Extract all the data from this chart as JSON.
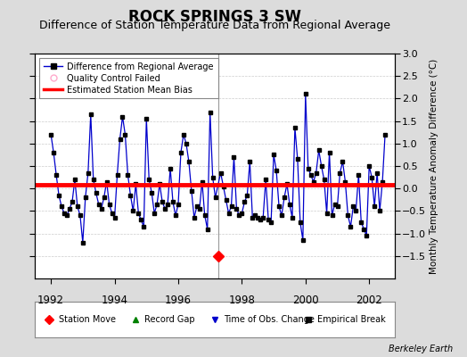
{
  "title": "ROCK SPRINGS 3 SW",
  "subtitle": "Difference of Station Temperature Data from Regional Average",
  "ylabel": "Monthly Temperature Anomaly Difference (°C)",
  "ylim": [
    -2,
    3
  ],
  "yticks_right": [
    -1.5,
    -1,
    -0.5,
    0,
    0.5,
    1,
    1.5,
    2,
    2.5,
    3
  ],
  "xlim": [
    1991.5,
    2002.8
  ],
  "xticks": [
    1992,
    1994,
    1996,
    1998,
    2000,
    2002
  ],
  "bias_value": 0.08,
  "station_move_x": 1997.25,
  "station_move_y": -1.5,
  "vertical_line_x": 1997.25,
  "background_color": "#dcdcdc",
  "plot_bg_color": "#ffffff",
  "line_color": "#0000cc",
  "bias_color": "#ff0000",
  "marker_color": "#000000",
  "title_fontsize": 12,
  "subtitle_fontsize": 9,
  "data_x": [
    1992.0,
    1992.083,
    1992.167,
    1992.25,
    1992.333,
    1992.417,
    1992.5,
    1992.583,
    1992.667,
    1992.75,
    1992.833,
    1992.917,
    1993.0,
    1993.083,
    1993.167,
    1993.25,
    1993.333,
    1993.417,
    1993.5,
    1993.583,
    1993.667,
    1993.75,
    1993.833,
    1993.917,
    1994.0,
    1994.083,
    1994.167,
    1994.25,
    1994.333,
    1994.417,
    1994.5,
    1994.583,
    1994.667,
    1994.75,
    1994.833,
    1994.917,
    1995.0,
    1995.083,
    1995.167,
    1995.25,
    1995.333,
    1995.417,
    1995.5,
    1995.583,
    1995.667,
    1995.75,
    1995.833,
    1995.917,
    1996.0,
    1996.083,
    1996.167,
    1996.25,
    1996.333,
    1996.417,
    1996.5,
    1996.583,
    1996.667,
    1996.75,
    1996.833,
    1996.917,
    1997.0,
    1997.083,
    1997.167,
    1997.333,
    1997.417,
    1997.5,
    1997.583,
    1997.667,
    1997.75,
    1997.833,
    1997.917,
    1998.0,
    1998.083,
    1998.167,
    1998.25,
    1998.333,
    1998.417,
    1998.5,
    1998.583,
    1998.667,
    1998.75,
    1998.833,
    1998.917,
    1999.0,
    1999.083,
    1999.167,
    1999.25,
    1999.333,
    1999.417,
    1999.5,
    1999.583,
    1999.667,
    1999.75,
    1999.833,
    1999.917,
    2000.0,
    2000.083,
    2000.167,
    2000.25,
    2000.333,
    2000.417,
    2000.5,
    2000.583,
    2000.667,
    2000.75,
    2000.833,
    2000.917,
    2001.0,
    2001.083,
    2001.167,
    2001.25,
    2001.333,
    2001.417,
    2001.5,
    2001.583,
    2001.667,
    2001.75,
    2001.833,
    2001.917,
    2002.0,
    2002.083,
    2002.167,
    2002.25,
    2002.333,
    2002.417,
    2002.5
  ],
  "data_y": [
    1.2,
    0.8,
    0.3,
    -0.15,
    -0.4,
    -0.55,
    -0.6,
    -0.45,
    -0.3,
    0.2,
    -0.4,
    -0.6,
    -1.2,
    -0.2,
    0.35,
    1.65,
    0.2,
    -0.1,
    -0.35,
    -0.45,
    -0.2,
    0.15,
    -0.35,
    -0.55,
    -0.65,
    0.3,
    1.1,
    1.6,
    1.2,
    0.3,
    -0.15,
    -0.5,
    0.1,
    -0.55,
    -0.7,
    -0.85,
    1.55,
    0.2,
    -0.1,
    -0.55,
    -0.35,
    0.1,
    -0.3,
    -0.45,
    -0.35,
    0.45,
    -0.3,
    -0.6,
    -0.35,
    0.8,
    1.2,
    1.0,
    0.6,
    -0.05,
    -0.65,
    -0.4,
    -0.45,
    0.15,
    -0.6,
    -0.9,
    1.7,
    0.25,
    -0.2,
    0.35,
    0.05,
    -0.25,
    -0.55,
    -0.4,
    0.7,
    -0.45,
    -0.6,
    -0.55,
    -0.3,
    -0.15,
    0.6,
    -0.65,
    -0.6,
    -0.65,
    -0.7,
    -0.65,
    0.2,
    -0.7,
    -0.75,
    0.75,
    0.4,
    -0.4,
    -0.6,
    -0.2,
    0.1,
    -0.35,
    -0.65,
    1.35,
    0.65,
    -0.75,
    -1.15,
    2.1,
    0.45,
    0.3,
    0.15,
    0.35,
    0.85,
    0.5,
    0.2,
    -0.55,
    0.8,
    -0.6,
    -0.35,
    -0.4,
    0.35,
    0.6,
    0.15,
    -0.6,
    -0.85,
    -0.4,
    -0.5,
    0.3,
    -0.75,
    -0.9,
    -1.05,
    0.5,
    0.25,
    -0.4,
    0.35,
    -0.5,
    0.15,
    1.2
  ],
  "footer_text": "Berkeley Earth"
}
